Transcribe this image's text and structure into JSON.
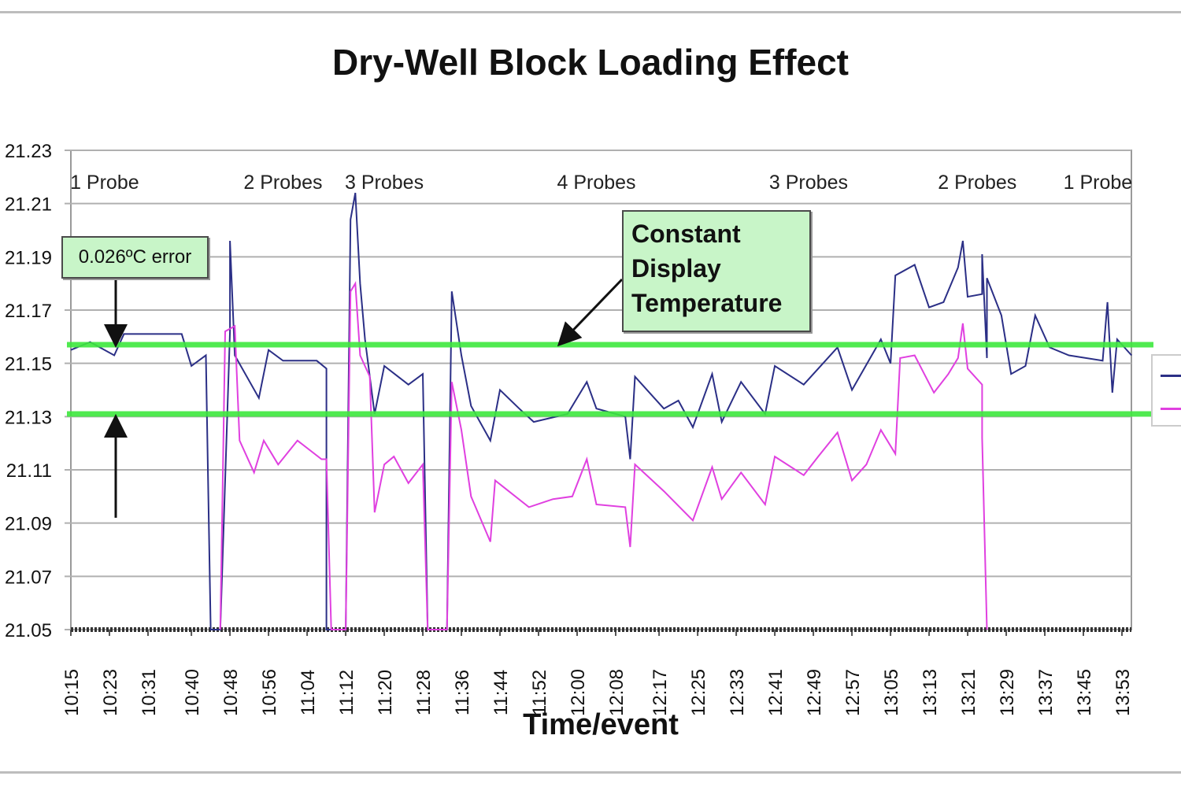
{
  "chart_data": {
    "type": "line",
    "title": "Dry-Well Block Loading Effect",
    "xlabel": "Time/event",
    "ylabel": "",
    "ylim": [
      21.05,
      21.23
    ],
    "yticks": [
      "21.05",
      "21.07",
      "21.09",
      "21.11",
      "21.13",
      "21.15",
      "21.17",
      "21.19",
      "21.21",
      "21.23"
    ],
    "xticks": [
      "10:15",
      "10:23",
      "10:31",
      "10:40",
      "10:48",
      "10:56",
      "11:04",
      "11:12",
      "11:20",
      "11:28",
      "11:36",
      "11:44",
      "11:52",
      "12:00",
      "12:08",
      "12:17",
      "12:25",
      "12:33",
      "12:41",
      "12:49",
      "12:57",
      "13:05",
      "13:13",
      "13:21",
      "13:29",
      "13:37",
      "13:45",
      "13:53"
    ],
    "grid": "horizontal",
    "legend": "right (cut off, no text visible)",
    "colors": {
      "series1": "#2b2f86",
      "series2": "#e040e0",
      "reference": "#3ee83e",
      "callout_fill": "#c8f5c8"
    },
    "series": [
      {
        "color": "#2b2f86",
        "points": [
          [
            "10:15",
            21.155
          ],
          [
            "10:19",
            21.158
          ],
          [
            "10:24",
            21.153
          ],
          [
            "10:26",
            21.161
          ],
          [
            "10:31",
            21.161
          ],
          [
            "10:38",
            21.161
          ],
          [
            "10:40",
            21.149
          ],
          [
            "10:43",
            21.153
          ],
          [
            "10:44",
            21.05
          ],
          [
            "10:46",
            21.05
          ],
          [
            "10:48",
            21.162
          ],
          [
            "10:48",
            21.196
          ],
          [
            "10:49",
            21.153
          ],
          [
            "10:54",
            21.137
          ],
          [
            "10:56",
            21.155
          ],
          [
            "10:59",
            21.151
          ],
          [
            "11:06",
            21.151
          ],
          [
            "11:08",
            21.148
          ],
          [
            "11:08",
            21.05
          ],
          [
            "11:12",
            21.05
          ],
          [
            "11:13",
            21.204
          ],
          [
            "11:14",
            21.214
          ],
          [
            "11:15",
            21.18
          ],
          [
            "11:16",
            21.159
          ],
          [
            "11:18",
            21.131
          ],
          [
            "11:20",
            21.149
          ],
          [
            "11:25",
            21.142
          ],
          [
            "11:28",
            21.146
          ],
          [
            "11:29",
            21.05
          ],
          [
            "11:33",
            21.05
          ],
          [
            "11:34",
            21.177
          ],
          [
            "11:36",
            21.153
          ],
          [
            "11:38",
            21.134
          ],
          [
            "11:42",
            21.121
          ],
          [
            "11:44",
            21.14
          ],
          [
            "11:48",
            21.133
          ],
          [
            "11:51",
            21.128
          ],
          [
            "11:58",
            21.131
          ],
          [
            "12:02",
            21.143
          ],
          [
            "12:04",
            21.133
          ],
          [
            "12:10",
            21.13
          ],
          [
            "12:11",
            21.114
          ],
          [
            "12:12",
            21.145
          ],
          [
            "12:18",
            21.133
          ],
          [
            "12:21",
            21.136
          ],
          [
            "12:24",
            21.126
          ],
          [
            "12:28",
            21.146
          ],
          [
            "12:30",
            21.128
          ],
          [
            "12:34",
            21.143
          ],
          [
            "12:39",
            21.131
          ],
          [
            "12:41",
            21.149
          ],
          [
            "12:47",
            21.142
          ],
          [
            "12:50",
            21.148
          ],
          [
            "12:54",
            21.156
          ],
          [
            "12:57",
            21.14
          ],
          [
            "13:03",
            21.159
          ],
          [
            "13:05",
            21.15
          ],
          [
            "13:06",
            21.183
          ],
          [
            "13:10",
            21.187
          ],
          [
            "13:13",
            21.171
          ],
          [
            "13:16",
            21.173
          ],
          [
            "13:19",
            21.186
          ],
          [
            "13:20",
            21.196
          ],
          [
            "13:21",
            21.175
          ],
          [
            "13:24",
            21.176
          ],
          [
            "13:24",
            21.191
          ],
          [
            "13:25",
            21.152
          ],
          [
            "13:25",
            21.182
          ],
          [
            "13:28",
            21.168
          ],
          [
            "13:30",
            21.146
          ],
          [
            "13:33",
            21.149
          ],
          [
            "13:35",
            21.168
          ],
          [
            "13:38",
            21.156
          ],
          [
            "13:42",
            21.153
          ],
          [
            "13:49",
            21.151
          ],
          [
            "13:50",
            21.173
          ],
          [
            "13:51",
            21.139
          ],
          [
            "13:52",
            21.159
          ],
          [
            "13:55",
            21.153
          ]
        ]
      },
      {
        "color": "#e040e0",
        "points": [
          [
            "10:46",
            21.05
          ],
          [
            "10:47",
            21.162
          ],
          [
            "10:49",
            21.164
          ],
          [
            "10:50",
            21.121
          ],
          [
            "10:53",
            21.109
          ],
          [
            "10:55",
            21.121
          ],
          [
            "10:58",
            21.112
          ],
          [
            "11:02",
            21.121
          ],
          [
            "11:07",
            21.114
          ],
          [
            "11:08",
            21.114
          ],
          [
            "11:09",
            21.05
          ],
          [
            "11:12",
            21.05
          ],
          [
            "11:13",
            21.177
          ],
          [
            "11:14",
            21.18
          ],
          [
            "11:15",
            21.153
          ],
          [
            "11:17",
            21.145
          ],
          [
            "11:18",
            21.094
          ],
          [
            "11:20",
            21.112
          ],
          [
            "11:22",
            21.115
          ],
          [
            "11:25",
            21.105
          ],
          [
            "11:28",
            21.112
          ],
          [
            "11:29",
            21.05
          ],
          [
            "11:33",
            21.05
          ],
          [
            "11:34",
            21.143
          ],
          [
            "11:36",
            21.125
          ],
          [
            "11:38",
            21.1
          ],
          [
            "11:42",
            21.083
          ],
          [
            "11:43",
            21.106
          ],
          [
            "11:50",
            21.096
          ],
          [
            "11:55",
            21.099
          ],
          [
            "11:59",
            21.1
          ],
          [
            "12:02",
            21.114
          ],
          [
            "12:04",
            21.097
          ],
          [
            "12:10",
            21.096
          ],
          [
            "12:11",
            21.081
          ],
          [
            "12:12",
            21.112
          ],
          [
            "12:18",
            21.102
          ],
          [
            "12:24",
            21.091
          ],
          [
            "12:28",
            21.111
          ],
          [
            "12:30",
            21.099
          ],
          [
            "12:34",
            21.109
          ],
          [
            "12:39",
            21.097
          ],
          [
            "12:41",
            21.115
          ],
          [
            "12:47",
            21.108
          ],
          [
            "12:50",
            21.115
          ],
          [
            "12:54",
            21.124
          ],
          [
            "12:57",
            21.106
          ],
          [
            "13:00",
            21.112
          ],
          [
            "13:03",
            21.125
          ],
          [
            "13:06",
            21.116
          ],
          [
            "13:07",
            21.152
          ],
          [
            "13:10",
            21.153
          ],
          [
            "13:14",
            21.139
          ],
          [
            "13:17",
            21.146
          ],
          [
            "13:19",
            21.152
          ],
          [
            "13:20",
            21.165
          ],
          [
            "13:21",
            21.148
          ],
          [
            "13:24",
            21.142
          ],
          [
            "13:24",
            21.122
          ],
          [
            "13:25",
            21.05
          ]
        ]
      }
    ],
    "reference_lines": [
      21.157,
      21.131
    ],
    "annotations": {
      "probe_labels": [
        {
          "text": "1 Probe",
          "time": "10:22"
        },
        {
          "text": "2 Probes",
          "time": "10:59"
        },
        {
          "text": "3 Probes",
          "time": "11:20"
        },
        {
          "text": "4 Probes",
          "time": "12:04"
        },
        {
          "text": "3 Probes",
          "time": "12:48"
        },
        {
          "text": "2 Probes",
          "time": "13:23"
        },
        {
          "text": "1 Probe",
          "time": "13:48"
        }
      ],
      "error_callout": "0.026ºC error",
      "constant_callout": [
        "Constant",
        "Display",
        "Temperature"
      ]
    }
  }
}
